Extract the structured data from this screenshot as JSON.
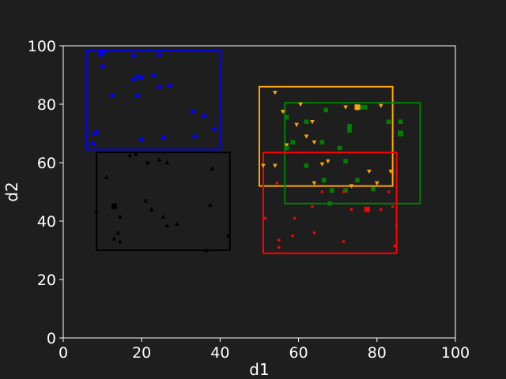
{
  "chart_data": {
    "type": "scatter",
    "xlabel": "d1",
    "ylabel": "d2",
    "xlim": [
      0,
      100
    ],
    "ylim": [
      0,
      100
    ],
    "xticks": [
      0,
      20,
      40,
      60,
      80,
      100
    ],
    "yticks": [
      0,
      20,
      40,
      60,
      80,
      100
    ],
    "grid": false,
    "colors": {
      "background": "#1e1e1e",
      "axes": "#ffffff",
      "blue": "#0000ff",
      "black": "#000000",
      "orange": "#ffa500",
      "green": "#008000",
      "red": "#ff0000"
    },
    "series": [
      {
        "color": "#0000ff",
        "marker": "circle",
        "box": [
          6,
          40,
          64.5,
          98.5
        ],
        "center": [
          10,
          98
        ],
        "points": [
          [
            9.5,
            97
          ],
          [
            10,
            93
          ],
          [
            18,
            96.5
          ],
          [
            24.5,
            97
          ],
          [
            23,
            90
          ],
          [
            18,
            88.5
          ],
          [
            19,
            89.5
          ],
          [
            20,
            89
          ],
          [
            12.5,
            83
          ],
          [
            19,
            83
          ],
          [
            24.5,
            86
          ],
          [
            27,
            86.5
          ],
          [
            33,
            77.5
          ],
          [
            36,
            76
          ],
          [
            38.5,
            71.5
          ],
          [
            33.5,
            69
          ],
          [
            25.5,
            68.5
          ],
          [
            20,
            68
          ],
          [
            8,
            70
          ],
          [
            8.5,
            70.5
          ],
          [
            7.5,
            66.5
          ]
        ]
      },
      {
        "color": "#000000",
        "marker": "triangle",
        "box": [
          8.5,
          42.5,
          30,
          63.5
        ],
        "center": [
          13,
          45
        ],
        "points": [
          [
            17,
            62.5
          ],
          [
            18.5,
            63
          ],
          [
            21.5,
            60
          ],
          [
            24.5,
            61
          ],
          [
            26.5,
            60
          ],
          [
            38,
            58
          ],
          [
            11,
            55
          ],
          [
            21,
            47
          ],
          [
            8.5,
            43.5
          ],
          [
            13,
            45
          ],
          [
            14.5,
            41.5
          ],
          [
            22.5,
            44
          ],
          [
            25.5,
            41.5
          ],
          [
            26.5,
            38.5
          ],
          [
            29,
            39
          ],
          [
            37.5,
            45.5
          ],
          [
            14,
            36
          ],
          [
            13,
            34
          ],
          [
            14.5,
            33
          ],
          [
            42,
            35
          ],
          [
            36.5,
            30
          ]
        ]
      },
      {
        "color": "#ffa500",
        "marker": "triangle-down",
        "box": [
          50,
          84,
          52,
          86
        ],
        "center": [
          75,
          79
        ],
        "points": [
          [
            54,
            84
          ],
          [
            60.5,
            80
          ],
          [
            72,
            79
          ],
          [
            75,
            78.5
          ],
          [
            76,
            79
          ],
          [
            81,
            79.5
          ],
          [
            56,
            77.5
          ],
          [
            59.5,
            73
          ],
          [
            63.5,
            74
          ],
          [
            57,
            66
          ],
          [
            62,
            69
          ],
          [
            64,
            67
          ],
          [
            51,
            59
          ],
          [
            54,
            59
          ],
          [
            66,
            59.5
          ],
          [
            67.5,
            60.5
          ],
          [
            78,
            57
          ],
          [
            83.5,
            57
          ],
          [
            64,
            53
          ],
          [
            73.5,
            52
          ],
          [
            80,
            53
          ]
        ]
      },
      {
        "color": "#008000",
        "marker": "square",
        "box": [
          56.5,
          91,
          46,
          80.5
        ],
        "center": [
          86,
          70
        ],
        "points": [
          [
            57,
            75.5
          ],
          [
            62,
            74
          ],
          [
            67,
            78
          ],
          [
            73,
            72.5
          ],
          [
            73,
            71
          ],
          [
            76,
            79
          ],
          [
            77,
            79
          ],
          [
            83,
            74
          ],
          [
            86,
            74
          ],
          [
            86,
            70
          ],
          [
            58.5,
            67
          ],
          [
            57,
            65
          ],
          [
            62,
            59
          ],
          [
            66,
            67
          ],
          [
            70.5,
            65
          ],
          [
            72,
            60.5
          ],
          [
            66.5,
            54
          ],
          [
            75,
            54
          ],
          [
            68.5,
            50.5
          ],
          [
            72,
            50.5
          ],
          [
            79,
            51
          ],
          [
            68,
            46
          ]
        ]
      },
      {
        "color": "#ff0000",
        "marker": "circle",
        "box": [
          51,
          85,
          29,
          63.5
        ],
        "center": [
          77.5,
          44
        ],
        "points": [
          [
            54.5,
            53
          ],
          [
            63.5,
            45
          ],
          [
            66,
            50
          ],
          [
            71.5,
            50
          ],
          [
            83,
            50
          ],
          [
            51.5,
            41
          ],
          [
            59,
            41
          ],
          [
            73.5,
            44
          ],
          [
            77.5,
            44
          ],
          [
            81,
            44
          ],
          [
            84,
            45
          ],
          [
            85,
            38.5
          ],
          [
            58.5,
            35
          ],
          [
            64,
            36
          ],
          [
            55,
            33.5
          ],
          [
            55,
            31
          ],
          [
            71.5,
            33
          ],
          [
            84.5,
            31.5
          ]
        ]
      }
    ]
  }
}
